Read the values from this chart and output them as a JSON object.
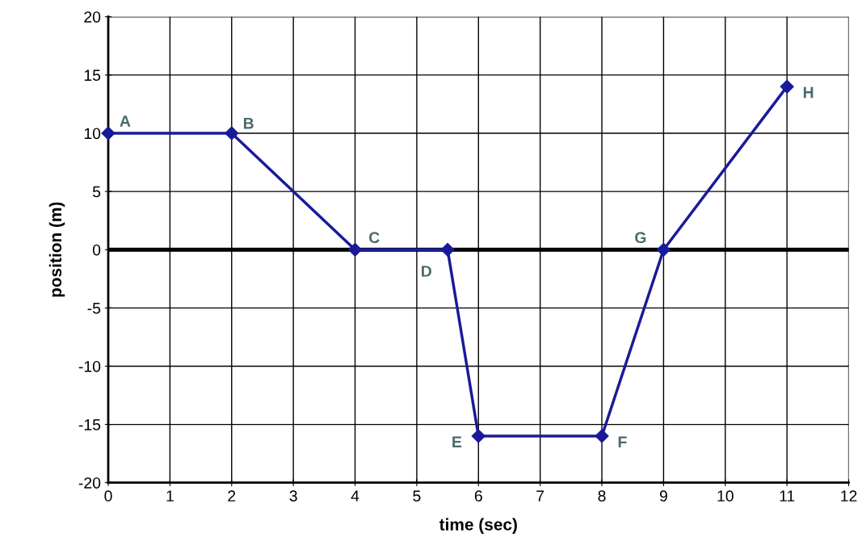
{
  "chart_data": {
    "type": "line",
    "xlabel": "time (sec)",
    "ylabel": "position (m)",
    "x": [
      0,
      2,
      4,
      5.5,
      6,
      8,
      9,
      11
    ],
    "series": [
      {
        "color": "#1a1a99",
        "values": [
          10,
          10,
          0,
          0,
          -16,
          -16,
          0,
          14
        ]
      }
    ],
    "xlim": [
      0,
      12
    ],
    "xticks": [
      0,
      1,
      2,
      3,
      4,
      5,
      6,
      7,
      8,
      9,
      10,
      11,
      12
    ],
    "ylim": [
      -20,
      20
    ],
    "yticks": [
      -20,
      -15,
      -10,
      -5,
      0,
      5,
      10,
      15,
      20
    ],
    "grid": true,
    "marker": "diamond",
    "line_style": "solid",
    "legend": false,
    "ref_lines": [
      {
        "axis": "y",
        "value": 0,
        "color": "#000000"
      }
    ],
    "annotations": [
      {
        "text": "A",
        "x": 0,
        "y": 10
      },
      {
        "text": "B",
        "x": 2,
        "y": 10
      },
      {
        "text": "C",
        "x": 4,
        "y": 0
      },
      {
        "text": "D",
        "x": 5.5,
        "y": 0
      },
      {
        "text": "E",
        "x": 6,
        "y": -16
      },
      {
        "text": "F",
        "x": 8,
        "y": -16
      },
      {
        "text": "G",
        "x": 9,
        "y": 0
      },
      {
        "text": "H",
        "x": 11,
        "y": 14
      }
    ]
  }
}
